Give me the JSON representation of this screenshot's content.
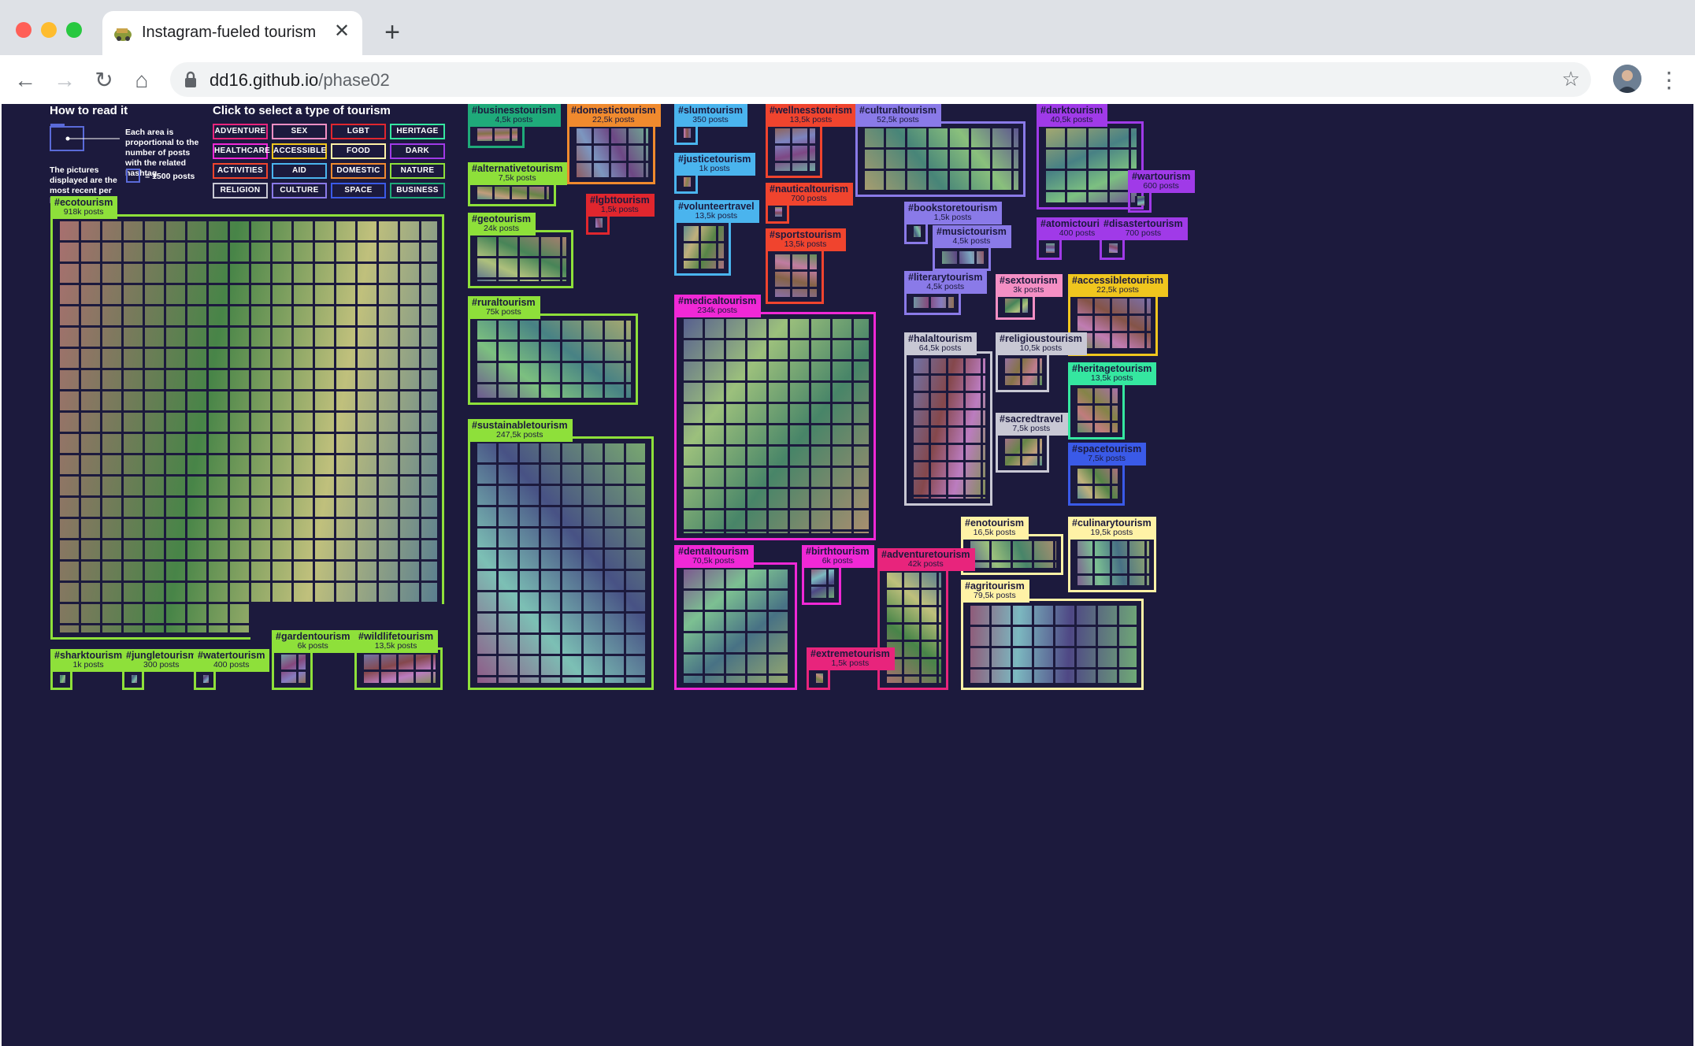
{
  "browser": {
    "tab_title": "Instagram-fueled tourism",
    "tab_close": "✕",
    "new_tab": "+",
    "url_host": "dd16.github.io",
    "url_path": "/phase02",
    "back": "←",
    "forward": "→",
    "reload": "↻",
    "home": "⌂",
    "star": "☆",
    "menu": "⋮",
    "colors": {
      "close": "#ff5f57",
      "minimize": "#febc2e",
      "maximize": "#28c840"
    }
  },
  "legend": {
    "how_title": "How to read it",
    "area_note": "Each area is proportional to the number of posts with the related hashtag",
    "pictures_note": "The pictures displayed are the most recent per hashtag",
    "scale_note": "= 1500 posts"
  },
  "filters": {
    "title": "Click to select a type of tourism",
    "buttons": [
      {
        "label": "ADVENTURE",
        "color": "#e8247c"
      },
      {
        "label": "SEX",
        "color": "#f48fc4"
      },
      {
        "label": "LGBT",
        "color": "#e0262e"
      },
      {
        "label": "HERITAGE",
        "color": "#35e7a0"
      },
      {
        "label": "HEALTHCARE",
        "color": "#f028d6"
      },
      {
        "label": "ACCESSIBLE",
        "color": "#f0c61e"
      },
      {
        "label": "FOOD",
        "color": "#fff2a6"
      },
      {
        "label": "DARK",
        "color": "#a03ae8"
      },
      {
        "label": "ACTIVITIES",
        "color": "#f0442e"
      },
      {
        "label": "AID",
        "color": "#4ab4ee"
      },
      {
        "label": "DOMESTIC",
        "color": "#f08a2e"
      },
      {
        "label": "NATURE",
        "color": "#8ee03a"
      },
      {
        "label": "RELIGION",
        "color": "#c8c8d4"
      },
      {
        "label": "CULTURE",
        "color": "#8a7ae8"
      },
      {
        "label": "SPACE",
        "color": "#3a5ae8"
      },
      {
        "label": "BUSINESS",
        "color": "#1faa7a"
      }
    ]
  },
  "hashtags": [
    {
      "tag": "#ecotourism",
      "posts": "918k posts",
      "color": "#8ee03a"
    },
    {
      "tag": "#sharktourism",
      "posts": "1k posts",
      "color": "#8ee03a"
    },
    {
      "tag": "#jungletourism",
      "posts": "300 posts",
      "color": "#8ee03a"
    },
    {
      "tag": "#watertourism",
      "posts": "400 posts",
      "color": "#8ee03a"
    },
    {
      "tag": "#gardentourism",
      "posts": "6k posts",
      "color": "#8ee03a"
    },
    {
      "tag": "#wildlifetourism",
      "posts": "13,5k posts",
      "color": "#8ee03a"
    },
    {
      "tag": "#businesstourism",
      "posts": "4,5k posts",
      "color": "#1faa7a"
    },
    {
      "tag": "#alternativetourism",
      "posts": "7,5k posts",
      "color": "#8ee03a"
    },
    {
      "tag": "#geotourism",
      "posts": "24k posts",
      "color": "#8ee03a"
    },
    {
      "tag": "#ruraltourism",
      "posts": "75k posts",
      "color": "#8ee03a"
    },
    {
      "tag": "#sustainabletourism",
      "posts": "247,5k posts",
      "color": "#8ee03a"
    },
    {
      "tag": "#domestictourism",
      "posts": "22,5k posts",
      "color": "#f08a2e"
    },
    {
      "tag": "#lgbttourism",
      "posts": "1,5k posts",
      "color": "#e0262e"
    },
    {
      "tag": "#slumtourism",
      "posts": "350 posts",
      "color": "#4ab4ee"
    },
    {
      "tag": "#justicetourism",
      "posts": "1k posts",
      "color": "#4ab4ee"
    },
    {
      "tag": "#volunteertravel",
      "posts": "13,5k posts",
      "color": "#4ab4ee"
    },
    {
      "tag": "#medicaltourism",
      "posts": "234k posts",
      "color": "#f028d6"
    },
    {
      "tag": "#dentaltourism",
      "posts": "70,5k posts",
      "color": "#f028d6"
    },
    {
      "tag": "#birthtourism",
      "posts": "6k posts",
      "color": "#f028d6"
    },
    {
      "tag": "#wellnesstourism",
      "posts": "13,5k posts",
      "color": "#f0442e"
    },
    {
      "tag": "#nauticaltourism",
      "posts": "700 posts",
      "color": "#f0442e"
    },
    {
      "tag": "#sportstourism",
      "posts": "13,5k posts",
      "color": "#f0442e"
    },
    {
      "tag": "#extremetourism",
      "posts": "1,5k posts",
      "color": "#e8247c"
    },
    {
      "tag": "#adventuretourism",
      "posts": "42k posts",
      "color": "#e8247c"
    },
    {
      "tag": "#culturaltourism",
      "posts": "52,5k posts",
      "color": "#8a7ae8"
    },
    {
      "tag": "#bookstoretourism",
      "posts": "1,5k posts",
      "color": "#8a7ae8"
    },
    {
      "tag": "#musictourism",
      "posts": "4,5k posts",
      "color": "#8a7ae8"
    },
    {
      "tag": "#literarytourism",
      "posts": "4,5k posts",
      "color": "#8a7ae8"
    },
    {
      "tag": "#halaltourism",
      "posts": "64,5k posts",
      "color": "#c8c8d4"
    },
    {
      "tag": "#religioustourism",
      "posts": "10,5k posts",
      "color": "#c8c8d4"
    },
    {
      "tag": "#sacredtravel",
      "posts": "7,5k posts",
      "color": "#c8c8d4"
    },
    {
      "tag": "#sextourism",
      "posts": "3k posts",
      "color": "#f48fc4"
    },
    {
      "tag": "#darktourism",
      "posts": "40,5k posts",
      "color": "#a03ae8"
    },
    {
      "tag": "#wartourism",
      "posts": "600 posts",
      "color": "#a03ae8"
    },
    {
      "tag": "#atomictourism",
      "posts": "400  posts",
      "color": "#a03ae8"
    },
    {
      "tag": "#disastertourism",
      "posts": "700 posts",
      "color": "#a03ae8"
    },
    {
      "tag": "#accessibletourism",
      "posts": "22,5k posts",
      "color": "#f0c61e"
    },
    {
      "tag": "#heritagetourism",
      "posts": "13,5k posts",
      "color": "#35e7a0"
    },
    {
      "tag": "#spacetourism",
      "posts": "7,5k posts",
      "color": "#3a5ae8"
    },
    {
      "tag": "#enotourism",
      "posts": "16,5k posts",
      "color": "#fff2a6"
    },
    {
      "tag": "#culinarytourism",
      "posts": "19,5k posts",
      "color": "#fff2a6"
    },
    {
      "tag": "#agritourism",
      "posts": "79,5k posts",
      "color": "#fff2a6"
    }
  ]
}
